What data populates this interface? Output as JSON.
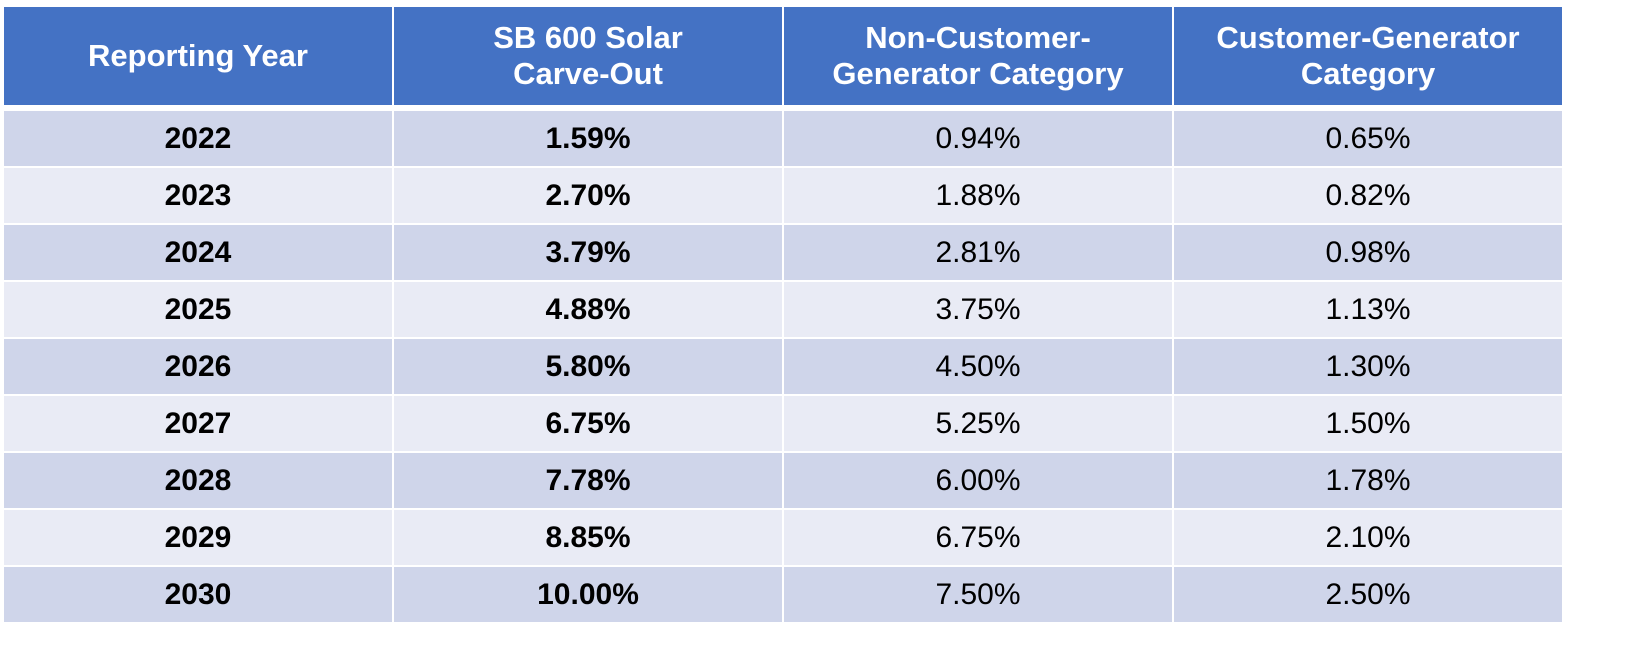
{
  "table": {
    "headers": [
      "Reporting Year",
      "SB 600 Solar Carve-Out",
      "Non-Customer-Generator Category",
      "Customer-Generator Category"
    ],
    "header_lines": [
      [
        "Reporting Year"
      ],
      [
        "SB 600 Solar",
        "Carve-Out"
      ],
      [
        "Non-Customer-",
        "Generator Category"
      ],
      [
        "Customer-Generator",
        "Category"
      ]
    ],
    "rows": [
      [
        "2022",
        "1.59%",
        "0.94%",
        "0.65%"
      ],
      [
        "2023",
        "2.70%",
        "1.88%",
        "0.82%"
      ],
      [
        "2024",
        "3.79%",
        "2.81%",
        "0.98%"
      ],
      [
        "2025",
        "4.88%",
        "3.75%",
        "1.13%"
      ],
      [
        "2026",
        "5.80%",
        "4.50%",
        "1.30%"
      ],
      [
        "2027",
        "6.75%",
        "5.25%",
        "1.50%"
      ],
      [
        "2028",
        "7.78%",
        "6.00%",
        "1.78%"
      ],
      [
        "2029",
        "8.85%",
        "6.75%",
        "2.10%"
      ],
      [
        "2030",
        "10.00%",
        "7.50%",
        "2.50%"
      ]
    ]
  },
  "colors": {
    "header": "#4472C4",
    "row_odd": "#CFD5EA",
    "row_even": "#E9EBF5"
  }
}
